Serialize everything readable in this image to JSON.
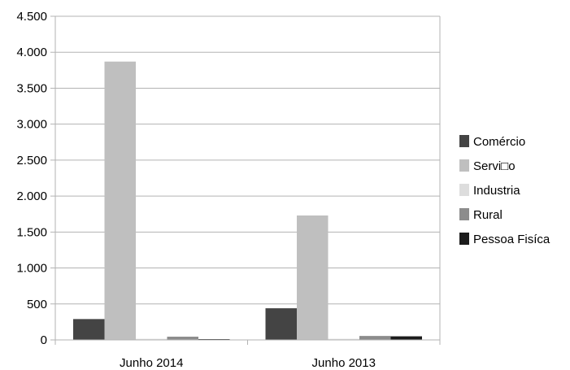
{
  "chart_data": {
    "type": "bar",
    "categories": [
      "Junho 2014",
      "Junho 2013"
    ],
    "series": [
      {
        "name": " Comércio",
        "values": [
          290,
          440
        ],
        "color": "#444444"
      },
      {
        "name": "Servi□o",
        "values": [
          3870,
          1730
        ],
        "color": "#bfbfbf"
      },
      {
        "name": "Industria",
        "values": [
          15,
          15
        ],
        "color": "#dddddd"
      },
      {
        "name": "Rural",
        "values": [
          45,
          55
        ],
        "color": "#8c8c8c"
      },
      {
        "name": "Pessoa Fisíca",
        "values": [
          8,
          50
        ],
        "color": "#1c1c1c"
      }
    ],
    "ylim": [
      0,
      4500
    ],
    "yticks": [
      0,
      500,
      1000,
      1500,
      2000,
      2500,
      3000,
      3500,
      4000,
      4500
    ],
    "ytick_labels": [
      "0",
      "500",
      "1.000",
      "1.500",
      "2.000",
      "2.500",
      "3.000",
      "3.500",
      "4.000",
      "4.500"
    ],
    "title": "",
    "xlabel": "",
    "ylabel": "",
    "grid": true,
    "legend_position": "right"
  }
}
